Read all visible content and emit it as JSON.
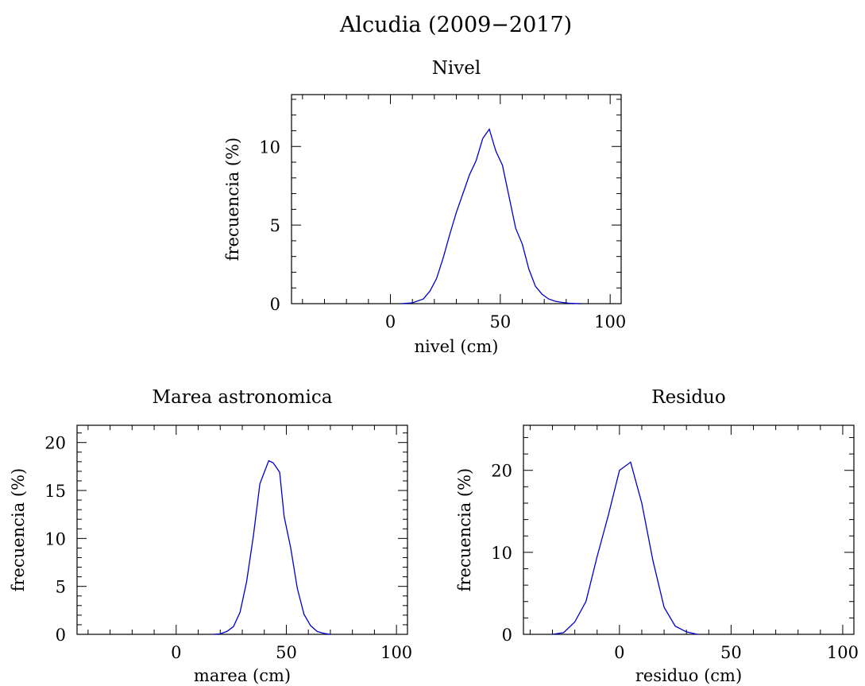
{
  "title": "Alcudia (2009−2017)",
  "chart_data": [
    {
      "type": "line",
      "title": "Nivel",
      "xlabel": "nivel (cm)",
      "ylabel": "frecuencia (%)",
      "xlim": [
        -45,
        105
      ],
      "ylim": [
        0,
        13.3
      ],
      "xticks": [
        0,
        50,
        100
      ],
      "yticks": [
        0,
        5,
        10
      ],
      "xminor": 10,
      "yminor": 1,
      "color": "#0000cc",
      "x": [
        5,
        10,
        15,
        18,
        21,
        24,
        27,
        30,
        33,
        36,
        39,
        42,
        45,
        48,
        51,
        54,
        57,
        60,
        63,
        66,
        69,
        72,
        75,
        78,
        81,
        84,
        87
      ],
      "y": [
        0,
        0.05,
        0.3,
        0.8,
        1.6,
        2.9,
        4.4,
        5.8,
        7.0,
        8.2,
        9.1,
        10.5,
        11.1,
        9.7,
        8.8,
        6.8,
        4.8,
        3.8,
        2.2,
        1.1,
        0.6,
        0.3,
        0.15,
        0.08,
        0.03,
        0.01,
        0
      ]
    },
    {
      "type": "line",
      "title": "Marea astronomica",
      "xlabel": "marea (cm)",
      "ylabel": "frecuencia (%)",
      "xlim": [
        -45,
        105
      ],
      "ylim": [
        0,
        21.8
      ],
      "xticks": [
        0,
        50,
        100
      ],
      "yticks": [
        0,
        5,
        10,
        15,
        20
      ],
      "xminor": 10,
      "yminor": 1,
      "color": "#0000cc",
      "x": [
        17,
        20,
        23,
        26,
        29,
        32,
        35,
        38,
        40,
        42,
        44,
        47,
        49,
        52,
        55,
        58,
        61,
        64,
        67,
        70
      ],
      "y": [
        0,
        0.05,
        0.3,
        0.8,
        2.3,
        5.5,
        10.2,
        15.7,
        16.9,
        18.1,
        17.9,
        16.9,
        12.3,
        9.0,
        4.8,
        2.1,
        0.9,
        0.3,
        0.1,
        0
      ]
    },
    {
      "type": "line",
      "title": "Residuo",
      "xlabel": "residuo (cm)",
      "ylabel": "frecuencia (%)",
      "xlim": [
        -43,
        105
      ],
      "ylim": [
        0,
        25.5
      ],
      "xticks": [
        0,
        50,
        100
      ],
      "yticks": [
        0,
        10,
        20
      ],
      "xminor": 10,
      "yminor": 2,
      "color": "#0000cc",
      "x": [
        -30,
        -25,
        -20,
        -15,
        -10,
        -5,
        0,
        5,
        10,
        15,
        20,
        25,
        30,
        35
      ],
      "y": [
        0,
        0.2,
        1.5,
        4.0,
        9.5,
        14.5,
        20.0,
        21.0,
        16.0,
        9.0,
        3.3,
        1.0,
        0.3,
        0
      ]
    }
  ]
}
